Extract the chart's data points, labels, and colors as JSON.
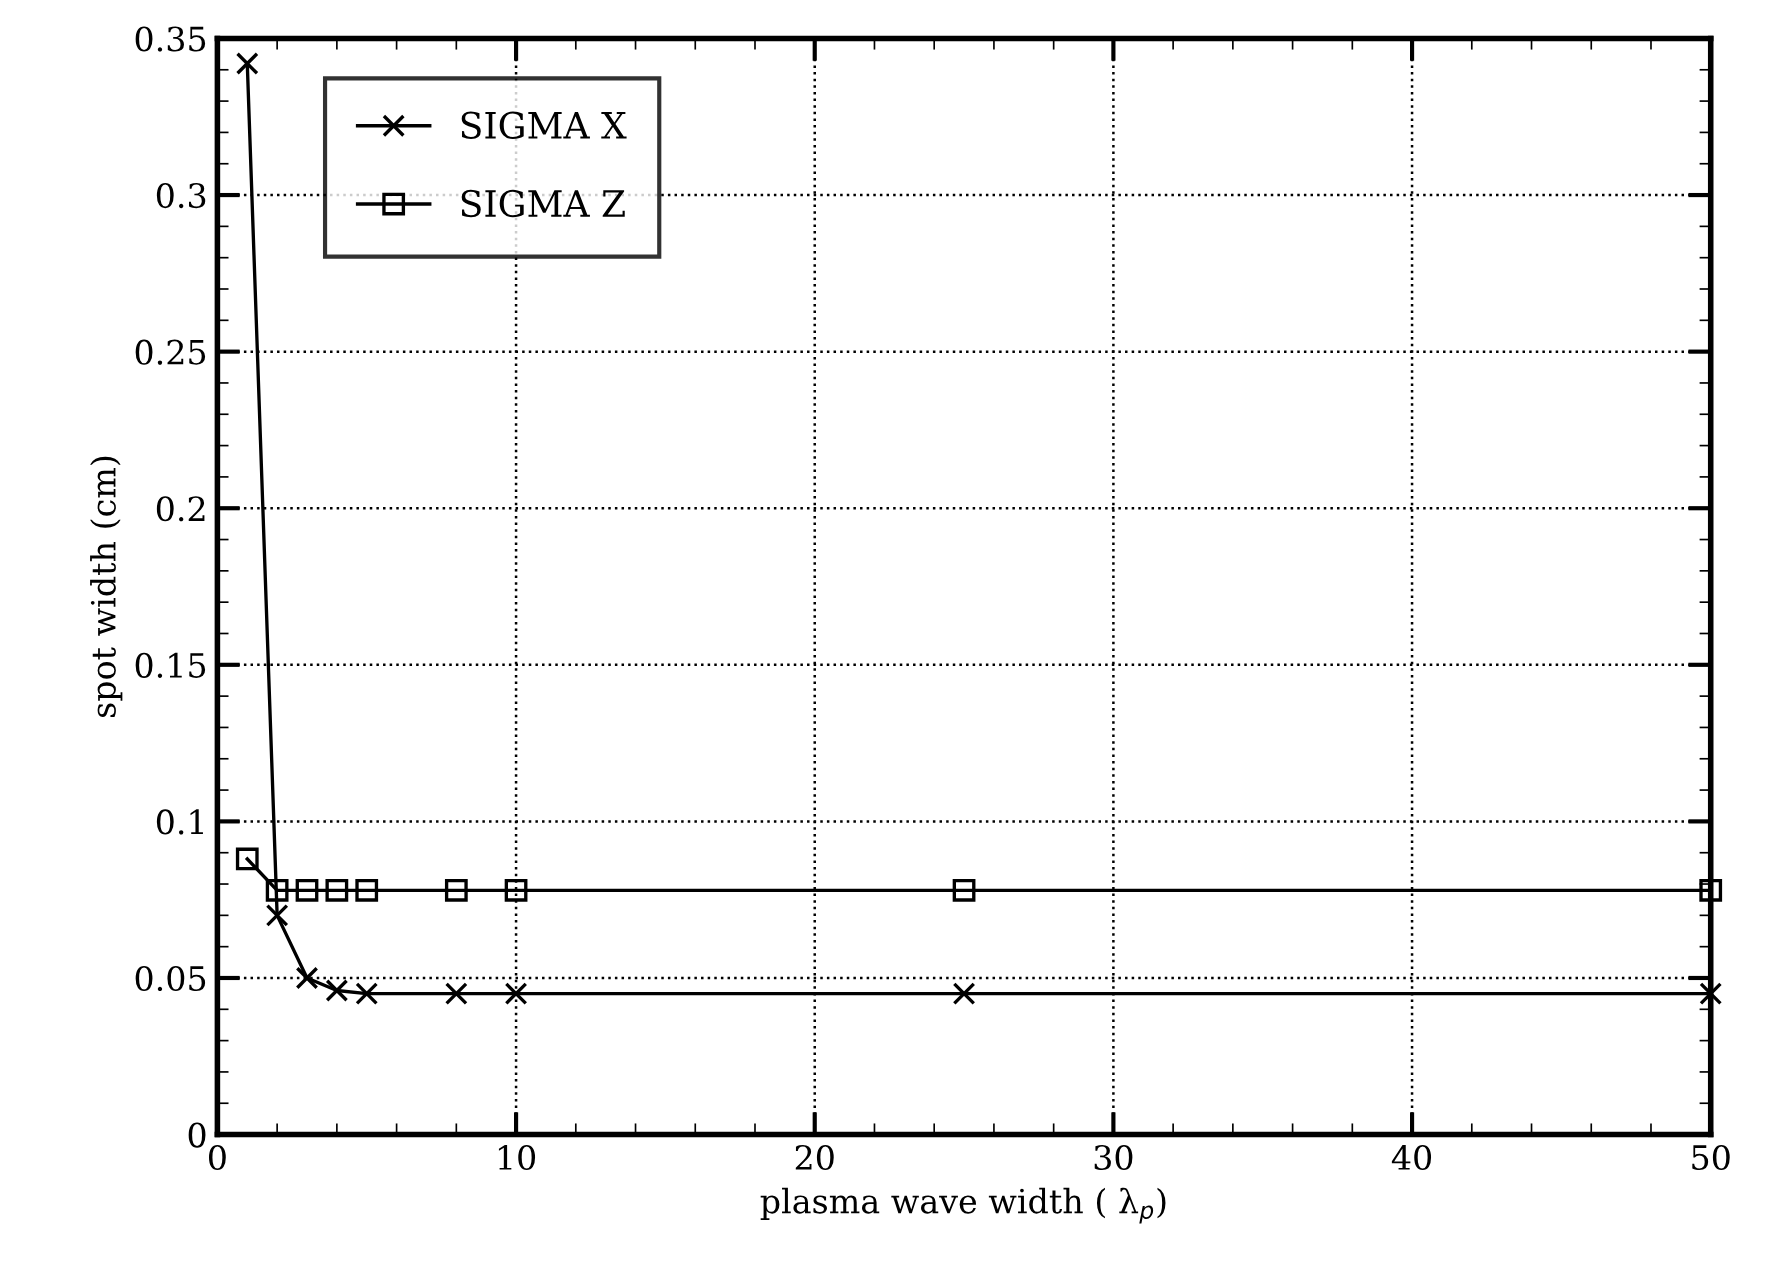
{
  "chart_data": {
    "type": "line",
    "xlabel": "plasma wave width ( λ$_{p}$)",
    "ylabel": "spot width (cm)",
    "xlim": [
      0,
      50
    ],
    "xticks": [
      0,
      10,
      20,
      30,
      40,
      50
    ],
    "ylim": [
      0,
      0.35
    ],
    "yticks": [
      0,
      0.05,
      0.1,
      0.15,
      0.2,
      0.25,
      0.3,
      0.35
    ],
    "grid": true,
    "legend": "top left",
    "x": [
      1,
      2,
      3,
      4,
      5,
      8,
      10,
      25,
      50
    ],
    "series": [
      {
        "name": "SIGMA X",
        "color": "#000000",
        "marker": "cross",
        "values": [
          0.342,
          0.07,
          0.05,
          0.046,
          0.045,
          0.045,
          0.045,
          0.045,
          0.045
        ]
      },
      {
        "name": "SIGMA Z",
        "color": "#000000",
        "marker": "square",
        "values": [
          0.088,
          0.078,
          0.078,
          0.078,
          0.078,
          0.078,
          0.078,
          0.078,
          0.078
        ]
      }
    ]
  }
}
